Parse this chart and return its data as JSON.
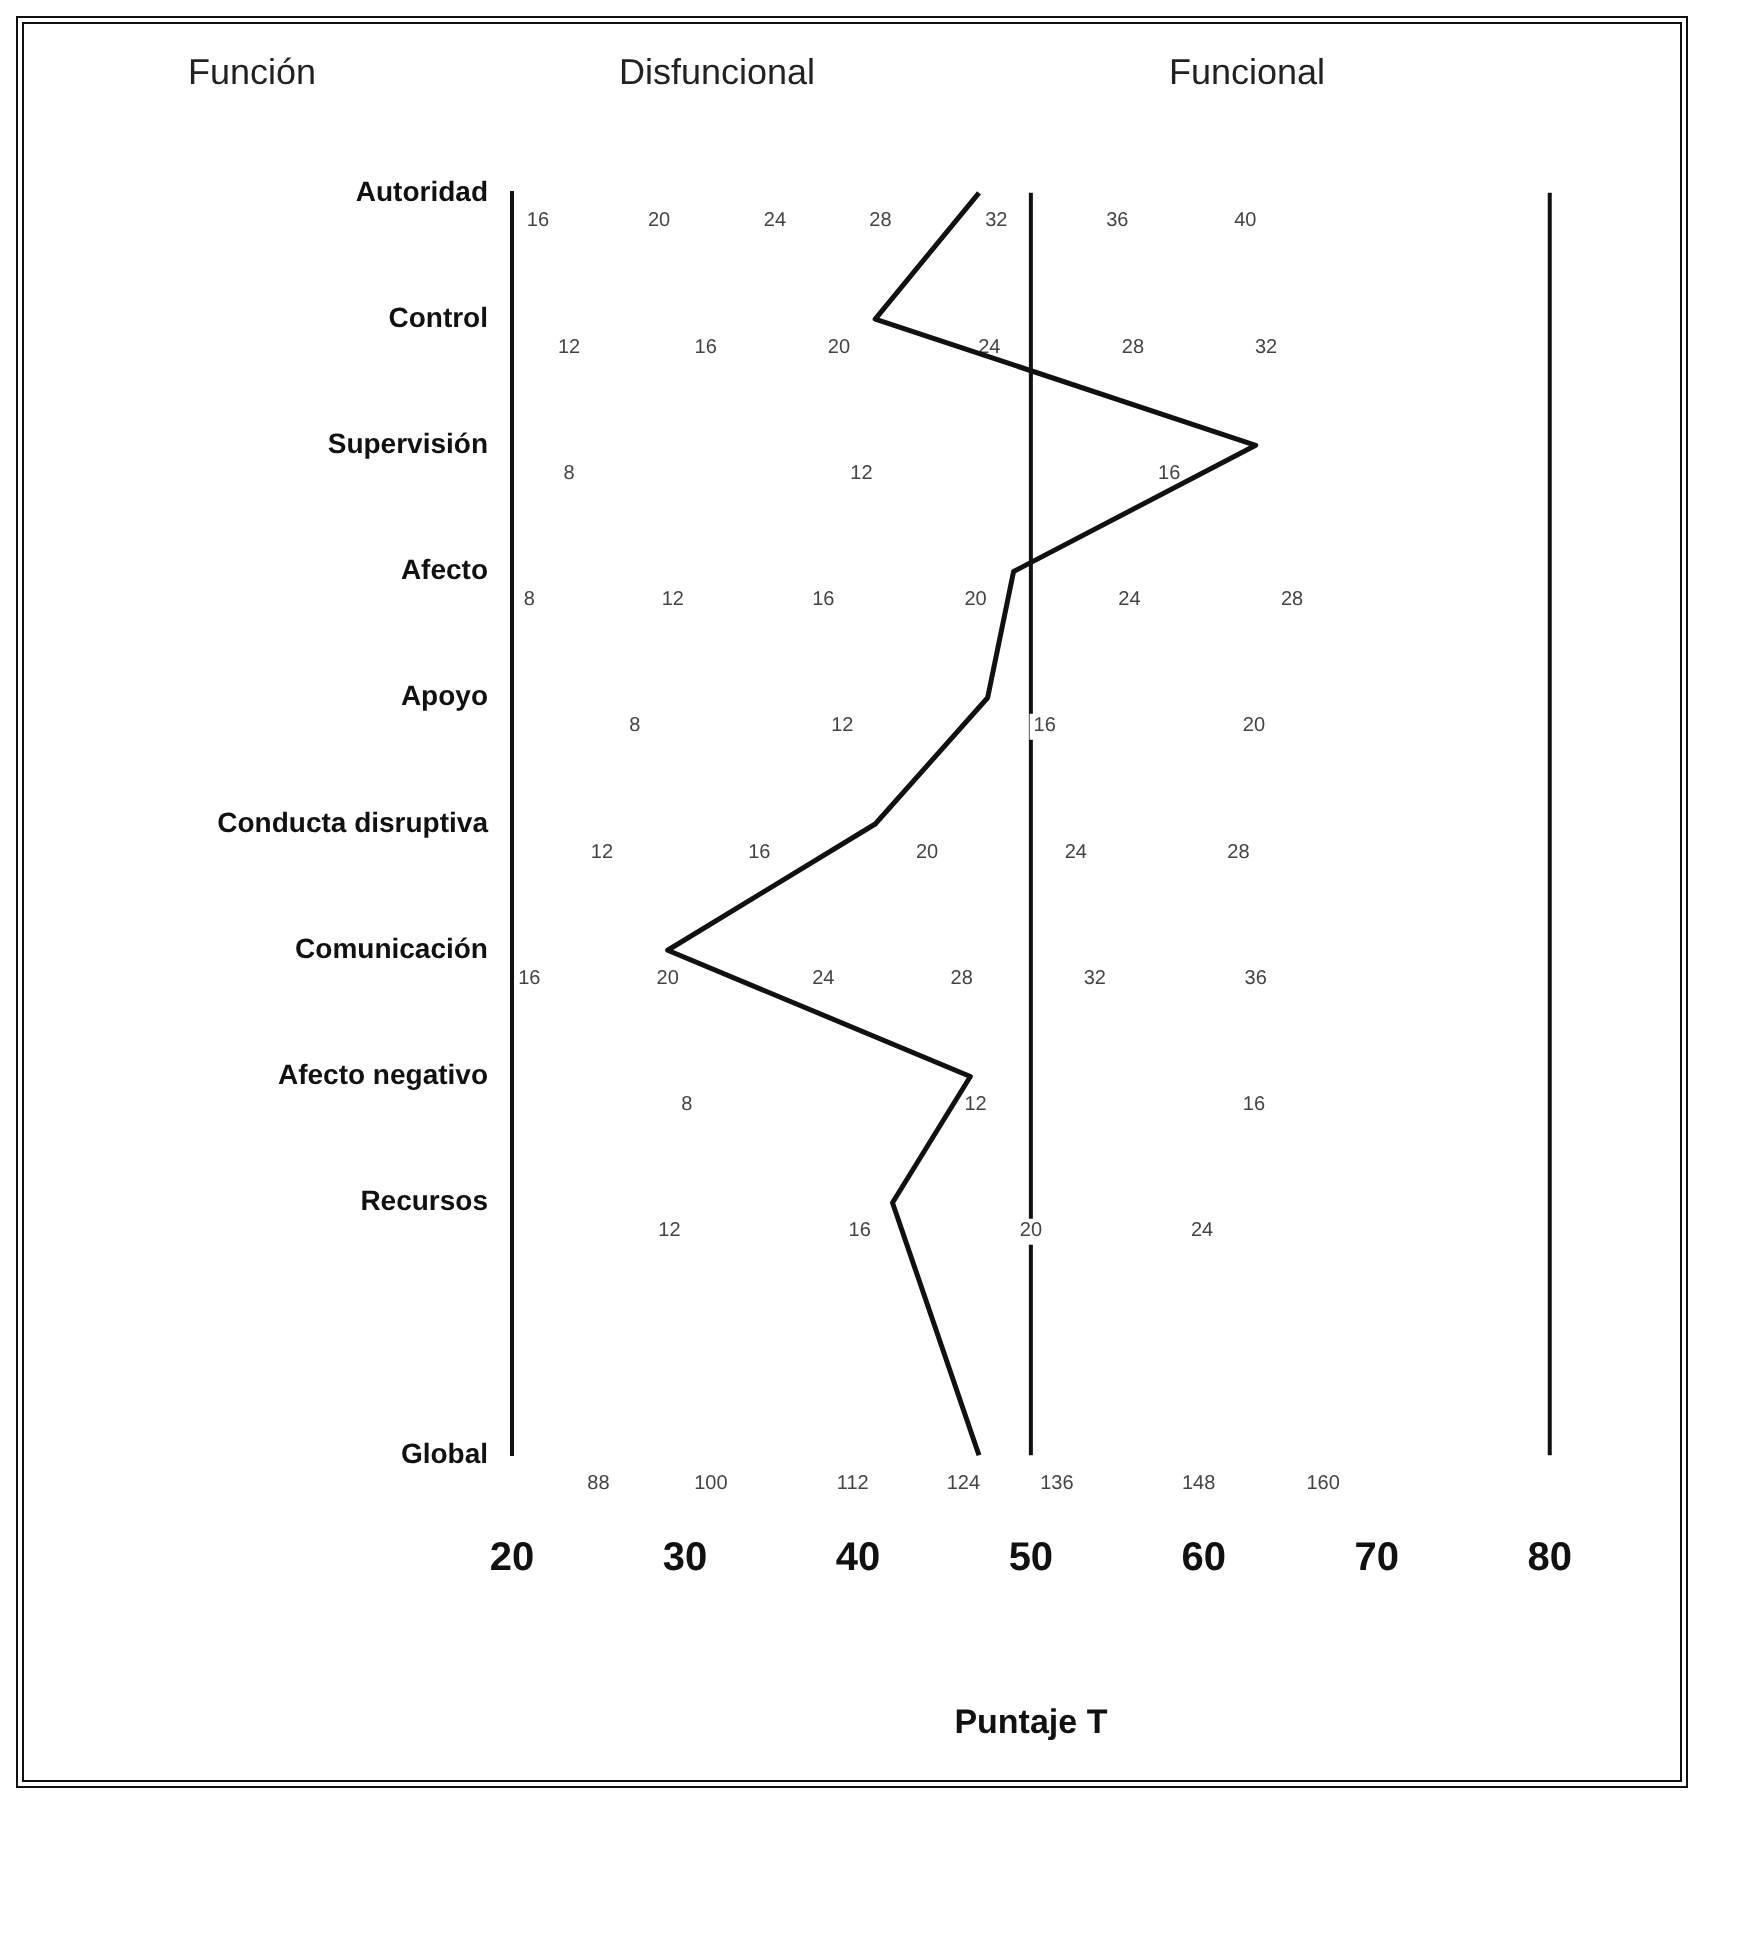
{
  "chart_data": {
    "type": "line",
    "orientation": "horizontal",
    "xlabel": "Puntaje T",
    "categories": [
      "Autoridad",
      "Control",
      "Supervisión",
      "Afecto",
      "Apoyo",
      "Conducta disruptiva",
      "Comunicación",
      "Afecto negativo",
      "Recursos",
      null,
      "Global"
    ],
    "series": [
      {
        "color": "#111111",
        "values": [
          47,
          41,
          63,
          49,
          47.5,
          41,
          29,
          46.5,
          42,
          null,
          47
        ]
      }
    ],
    "xlim": [
      20,
      80
    ],
    "xticks": [
      20,
      30,
      40,
      50,
      60,
      70,
      80
    ],
    "grid": false,
    "marker": "none",
    "legend": false,
    "ref_lines": [
      {
        "axis": "x",
        "value": 50
      }
    ],
    "annotations": [
      "Función",
      "Disfuncional",
      "Funcional",
      "16",
      "20",
      "24",
      "28",
      "32",
      "36",
      "40",
      "12",
      "16",
      "20",
      "24",
      "28",
      "32",
      "8",
      "12",
      "16",
      "8",
      "12",
      "16",
      "20",
      "24",
      "28",
      "8",
      "12",
      "16",
      "20",
      "12",
      "16",
      "20",
      "24",
      "28",
      "16",
      "20",
      "24",
      "28",
      "32",
      "36",
      "8",
      "12",
      "16",
      "12",
      "16",
      "20",
      "24",
      "88",
      "100",
      "112",
      "124",
      "136",
      "148",
      "160"
    ]
  }
}
